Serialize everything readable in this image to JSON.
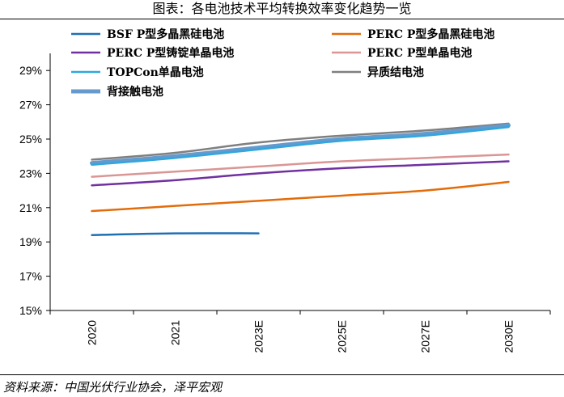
{
  "title": "图表：各电池技术平均转换效率变化趋势一览",
  "source": "资料来源：中国光伏行业协会，泽平宏观",
  "chart_data": {
    "type": "line",
    "categories": [
      "2020",
      "2021",
      "2023E",
      "2025E",
      "2027E",
      "2030E"
    ],
    "y_tick_labels": [
      "15%",
      "17%",
      "19%",
      "21%",
      "23%",
      "25%",
      "27%",
      "29%"
    ],
    "ylim": [
      15,
      30
    ],
    "y_unit": "%",
    "grid": false,
    "legend_position": "top",
    "series": [
      {
        "name": "BSF P型多晶黑硅电池",
        "color": "#1f6fb5",
        "values": [
          19.4,
          19.5,
          19.5,
          null,
          null,
          null
        ]
      },
      {
        "name": "PERC P型多晶黑硅电池",
        "color": "#e36c0a",
        "values": [
          20.8,
          21.1,
          21.4,
          21.7,
          22.0,
          22.5
        ]
      },
      {
        "name": "PERC P型铸锭单晶电池",
        "color": "#7030a0",
        "values": [
          22.3,
          22.6,
          23.0,
          23.3,
          23.5,
          23.7
        ]
      },
      {
        "name": "PERC P型单晶电池",
        "color": "#d99694",
        "values": [
          22.8,
          23.1,
          23.4,
          23.7,
          23.9,
          24.1
        ]
      },
      {
        "name": "TOPCon单晶电池",
        "color": "#2fa7df",
        "values": [
          23.5,
          23.9,
          24.4,
          24.9,
          25.2,
          25.7
        ]
      },
      {
        "name": "异质结电池",
        "color": "#7f7f7f",
        "values": [
          23.8,
          24.2,
          24.8,
          25.2,
          25.5,
          25.9
        ]
      },
      {
        "name": "背接触电池",
        "color": "#6699cc",
        "values": [
          23.6,
          24.0,
          24.5,
          25.0,
          25.3,
          25.8
        ]
      }
    ]
  }
}
